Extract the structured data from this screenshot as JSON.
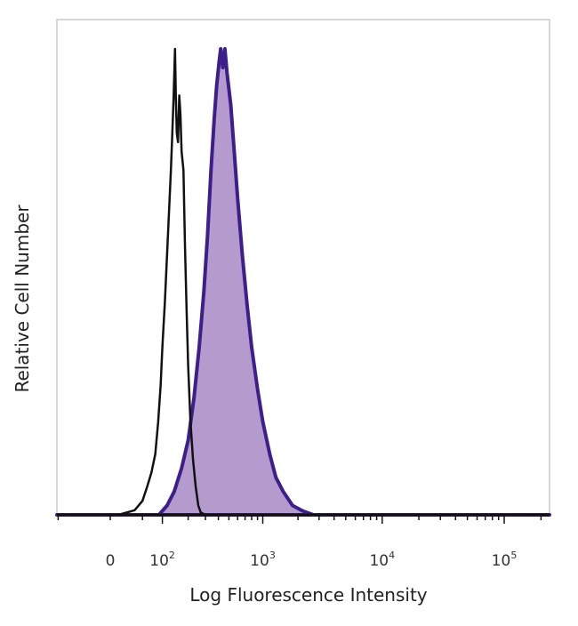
{
  "chart_data": {
    "type": "area",
    "title": "",
    "xlabel": "Log Fluorescence Intensity",
    "ylabel": "Relative Cell Number",
    "x_scale": "biexponential",
    "x_ticks": [
      {
        "value": 0,
        "base": "0",
        "exp": ""
      },
      {
        "value": 100,
        "base": "10",
        "exp": "2"
      },
      {
        "value": 1000,
        "base": "10",
        "exp": "3"
      },
      {
        "value": 10000,
        "base": "10",
        "exp": "4"
      },
      {
        "value": 100000,
        "base": "10",
        "exp": "5"
      }
    ],
    "xlim": [
      -200,
      250000
    ],
    "ylim": [
      0,
      1
    ],
    "grid": false,
    "colors": {
      "isotype_line": "#111111",
      "stained_line": "#3d1f8c",
      "stained_fill": "#a888c4",
      "axis": "#111111"
    },
    "series": [
      {
        "style": "outline",
        "points": [
          [
            -200,
            0.0
          ],
          [
            10,
            0.0
          ],
          [
            35,
            0.01
          ],
          [
            50,
            0.03
          ],
          [
            60,
            0.06
          ],
          [
            70,
            0.09
          ],
          [
            80,
            0.13
          ],
          [
            88,
            0.2
          ],
          [
            95,
            0.28
          ],
          [
            100,
            0.36
          ],
          [
            108,
            0.46
          ],
          [
            115,
            0.56
          ],
          [
            122,
            0.66
          ],
          [
            128,
            0.74
          ],
          [
            133,
            0.82
          ],
          [
            138,
            0.9
          ],
          [
            141,
            0.96
          ],
          [
            143,
            1.0
          ],
          [
            146,
            0.9
          ],
          [
            150,
            0.82
          ],
          [
            155,
            0.8
          ],
          [
            160,
            0.9
          ],
          [
            165,
            0.86
          ],
          [
            170,
            0.78
          ],
          [
            178,
            0.74
          ],
          [
            185,
            0.58
          ],
          [
            192,
            0.45
          ],
          [
            200,
            0.32
          ],
          [
            212,
            0.2
          ],
          [
            225,
            0.12
          ],
          [
            240,
            0.06
          ],
          [
            255,
            0.02
          ],
          [
            270,
            0.005
          ],
          [
            300,
            0.0
          ],
          [
            250000,
            0.0
          ]
        ]
      },
      {
        "style": "filled",
        "points": [
          [
            -200,
            0.0
          ],
          [
            90,
            0.0
          ],
          [
            115,
            0.02
          ],
          [
            140,
            0.05
          ],
          [
            170,
            0.1
          ],
          [
            200,
            0.16
          ],
          [
            230,
            0.25
          ],
          [
            260,
            0.36
          ],
          [
            290,
            0.48
          ],
          [
            315,
            0.6
          ],
          [
            340,
            0.74
          ],
          [
            365,
            0.85
          ],
          [
            385,
            0.92
          ],
          [
            405,
            0.97
          ],
          [
            420,
            1.0
          ],
          [
            440,
            0.96
          ],
          [
            460,
            1.0
          ],
          [
            480,
            0.95
          ],
          [
            520,
            0.88
          ],
          [
            560,
            0.78
          ],
          [
            600,
            0.68
          ],
          [
            660,
            0.56
          ],
          [
            730,
            0.45
          ],
          [
            800,
            0.36
          ],
          [
            900,
            0.27
          ],
          [
            1000,
            0.2
          ],
          [
            1150,
            0.13
          ],
          [
            1300,
            0.08
          ],
          [
            1500,
            0.05
          ],
          [
            1800,
            0.02
          ],
          [
            2200,
            0.008
          ],
          [
            2700,
            0.0
          ],
          [
            250000,
            0.0
          ]
        ]
      }
    ]
  }
}
